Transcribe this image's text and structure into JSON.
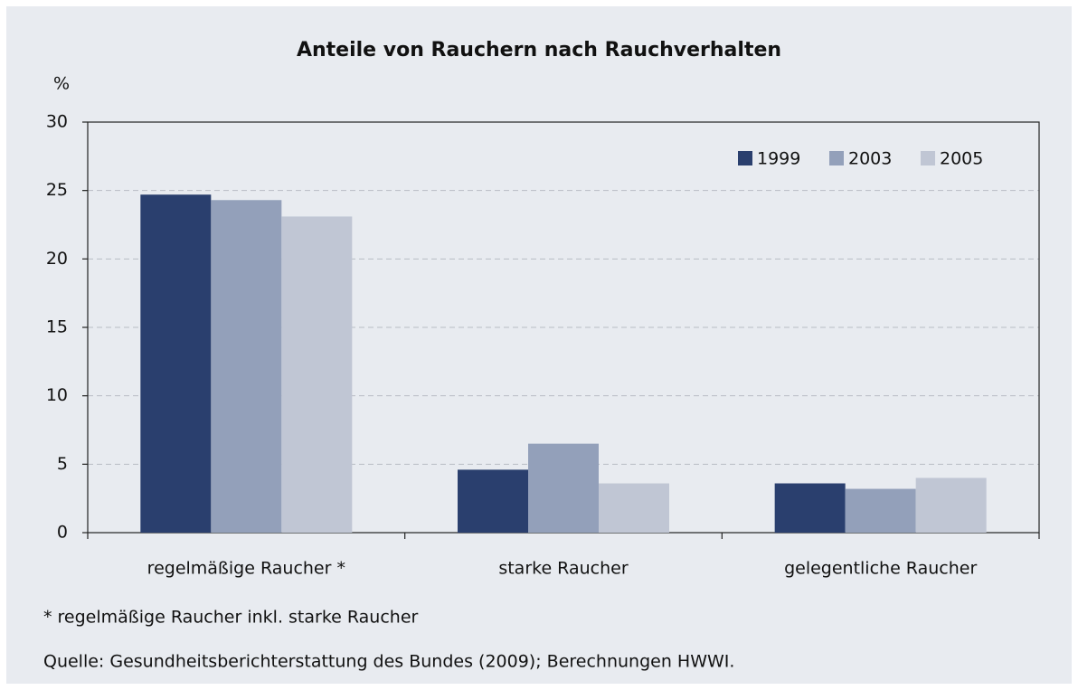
{
  "chart_data": {
    "type": "bar",
    "title": "Anteile von Rauchern nach Rauchverhalten",
    "y_label": "%",
    "categories": [
      "regelmäßige Raucher *",
      "starke Raucher",
      "gelegentliche Raucher"
    ],
    "series": [
      {
        "name": "1999",
        "color": "#2a3f6e",
        "values": [
          24.7,
          4.6,
          3.6
        ]
      },
      {
        "name": "2003",
        "color": "#93a0ba",
        "values": [
          24.3,
          6.5,
          3.2
        ]
      },
      {
        "name": "2005",
        "color": "#c0c6d4",
        "values": [
          23.1,
          3.6,
          4.0
        ]
      }
    ],
    "ylim": [
      0,
      30
    ],
    "yticks": [
      0,
      5,
      10,
      15,
      20,
      25,
      30
    ],
    "grid": true,
    "legend": "upper right",
    "footnote": "* regelmäßige Raucher inkl. starke Raucher",
    "source": "Quelle: Gesundheitsberichterstattung des Bundes (2009); Berechnungen HWWI."
  }
}
